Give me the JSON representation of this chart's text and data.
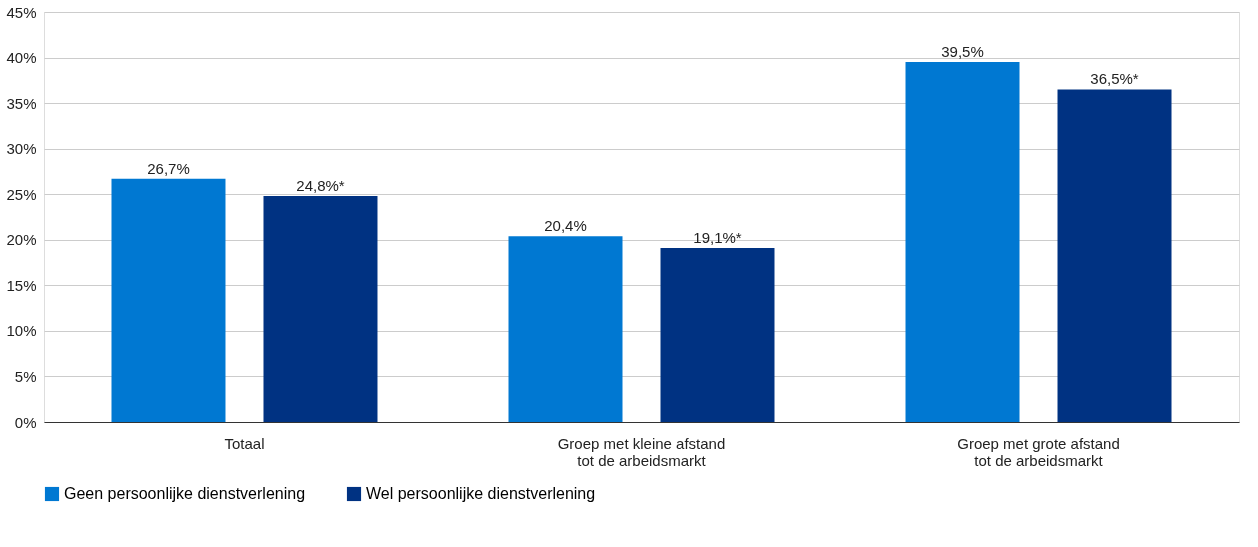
{
  "chart_data": {
    "type": "bar",
    "categories": [
      "Totaal",
      "Groep met kleine afstand\ntot de arbeidsmarkt",
      "Groep met grote afstand\ntot de arbeidsmarkt"
    ],
    "series": [
      {
        "name": "Geen persoonlijke dienstverlening",
        "color": "#0078d2",
        "values": [
          26.7,
          20.4,
          39.5
        ],
        "value_labels": [
          "26,7%",
          "20,4%",
          "39,5%"
        ]
      },
      {
        "name": "Wel persoonlijke dienstverlening",
        "color": "#003282",
        "values": [
          24.8,
          19.1,
          36.5
        ],
        "value_labels": [
          "24,8%*",
          "19,1%*",
          "36,5%*"
        ]
      }
    ],
    "ylim": [
      0,
      45
    ],
    "yticks": [
      {
        "value": 0,
        "label": "0%"
      },
      {
        "value": 5,
        "label": "5%"
      },
      {
        "value": 10,
        "label": "10%"
      },
      {
        "value": 15,
        "label": "15%"
      },
      {
        "value": 20,
        "label": "20%"
      },
      {
        "value": 25,
        "label": "25%"
      },
      {
        "value": 30,
        "label": "30%"
      },
      {
        "value": 35,
        "label": "35%"
      },
      {
        "value": 40,
        "label": "40%"
      },
      {
        "value": 45,
        "label": "45%"
      }
    ],
    "grid": "y",
    "legend": "bottom"
  }
}
